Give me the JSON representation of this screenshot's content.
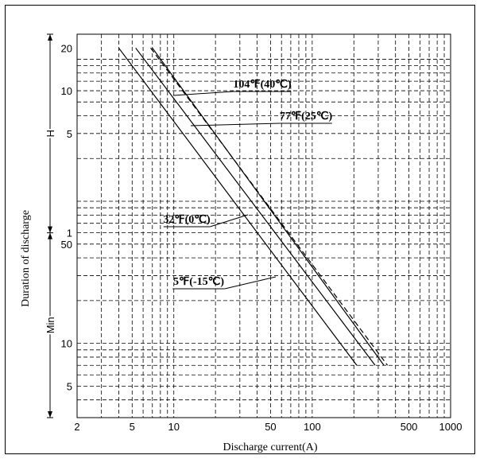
{
  "chart_data": {
    "type": "line",
    "title": "",
    "xlabel": "Discharge current(A)",
    "ylabel": "Duration of discharge",
    "x_scale": "log",
    "y_scale": "log",
    "xlim": [
      2,
      1000
    ],
    "x_ticks": [
      {
        "v": 2,
        "t": "2"
      },
      {
        "v": 5,
        "t": "5"
      },
      {
        "v": 10,
        "t": "10"
      },
      {
        "v": 50,
        "t": "50"
      },
      {
        "v": 100,
        "t": "100"
      },
      {
        "v": 500,
        "t": "500"
      },
      {
        "v": 1000,
        "t": "1000"
      }
    ],
    "y_unit_min": "Min",
    "y_unit_h": "H",
    "y_ticks_min": [
      {
        "v": 5,
        "t": "5"
      },
      {
        "v": 10,
        "t": "10"
      },
      {
        "v": 50,
        "t": "50"
      }
    ],
    "y_ticks_h": [
      {
        "v": 1,
        "t": "1"
      },
      {
        "v": 5,
        "t": "5"
      },
      {
        "v": 10,
        "t": "10"
      },
      {
        "v": 20,
        "t": "20"
      }
    ],
    "grid": true,
    "series": [
      {
        "name": "104℉(40℃)",
        "style": "solid",
        "label_x": 20,
        "points": [
          [
            7,
            1200
          ],
          [
            330,
            7
          ]
        ]
      },
      {
        "name": "77℉(25℃)",
        "style": "dashed",
        "label_x": 18,
        "points": [
          [
            6.8,
            1200
          ],
          [
            350,
            7
          ]
        ]
      },
      {
        "name": "32℉(0℃)",
        "style": "solid",
        "label_x": 40,
        "points": [
          [
            5.3,
            1200
          ],
          [
            285,
            7
          ]
        ]
      },
      {
        "name": "5℉(-15℃)",
        "style": "solid",
        "label_x": 60,
        "points": [
          [
            4,
            1200
          ],
          [
            210,
            7
          ]
        ]
      }
    ]
  }
}
